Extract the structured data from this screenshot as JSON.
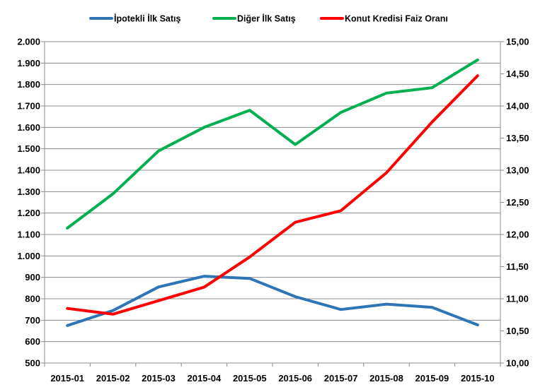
{
  "chart_data": {
    "type": "line",
    "categories": [
      "2015-01",
      "2015-02",
      "2015-03",
      "2015-04",
      "2015-05",
      "2015-06",
      "2015-07",
      "2015-08",
      "2015-09",
      "2015-10"
    ],
    "series": [
      {
        "name": "İpotekli İlk Satış",
        "axis": "left",
        "color": "#2E75B6",
        "values": [
          675,
          745,
          855,
          905,
          895,
          810,
          750,
          775,
          760,
          678
        ]
      },
      {
        "name": "Diğer İlk Satış",
        "axis": "left",
        "color": "#00B050",
        "values": [
          1130,
          1290,
          1490,
          1600,
          1680,
          1520,
          1670,
          1760,
          1785,
          1915
        ]
      },
      {
        "name": "Konut Kredisi Faiz Oranı",
        "axis": "right",
        "color": "#FF0000",
        "values": [
          10.85,
          10.76,
          10.97,
          11.18,
          11.65,
          12.19,
          12.37,
          12.96,
          13.75,
          14.47
        ]
      }
    ],
    "y_left": {
      "min": 500,
      "max": 2000,
      "step": 100,
      "tick_labels": [
        "500",
        "600",
        "700",
        "800",
        "900",
        "1.000",
        "1.100",
        "1.200",
        "1.300",
        "1.400",
        "1.500",
        "1.600",
        "1.700",
        "1.800",
        "1.900",
        "2.000"
      ]
    },
    "y_right": {
      "min": 10,
      "max": 15,
      "step": 0.5,
      "tick_labels": [
        "10,00",
        "10,50",
        "11,00",
        "11,50",
        "12,00",
        "12,50",
        "13,00",
        "13,50",
        "14,00",
        "14,50",
        "15,00"
      ]
    },
    "grid": true,
    "legend_position": "top"
  }
}
